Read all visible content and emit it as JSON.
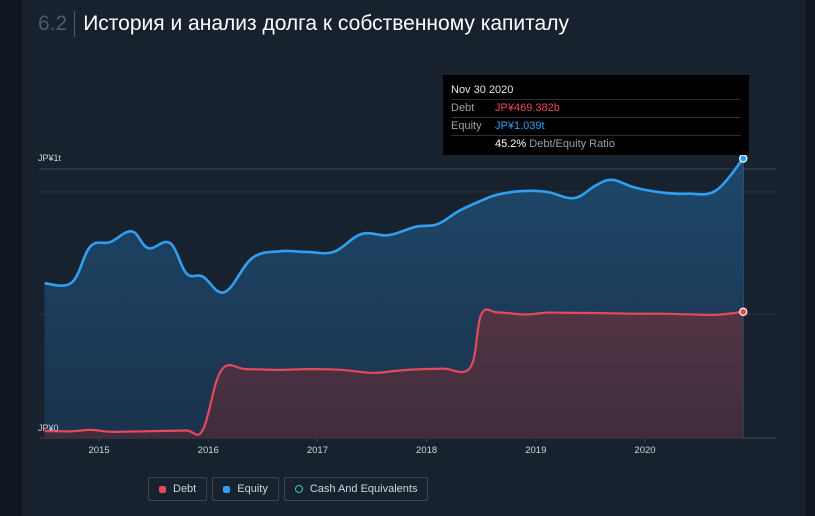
{
  "header": {
    "section_number": "6.2",
    "title": "История и анализ долга к собственному капиталу"
  },
  "tooltip": {
    "date": "Nov 30 2020",
    "debt_label": "Debt",
    "debt_value": "JP¥469.382b",
    "equity_label": "Equity",
    "equity_value": "JP¥1.039t",
    "ratio_value": "45.2%",
    "ratio_label": "Debt/Equity Ratio"
  },
  "legend": [
    {
      "label": "Debt",
      "color": "#e6485c"
    },
    {
      "label": "Equity",
      "color": "#2f9ff2"
    },
    {
      "label": "Cash And Equivalents",
      "color": "#2ec9a8"
    }
  ],
  "chart_data": {
    "type": "area",
    "y_unit": "JP¥ billions",
    "ylim": [
      0,
      1000
    ],
    "y_tick_labels": [
      "JP¥0",
      "JP¥1t"
    ],
    "x_tick_labels": [
      "2015",
      "2016",
      "2017",
      "2018",
      "2019",
      "2020"
    ],
    "xlim": [
      2014.45,
      2021.2
    ],
    "grid": true,
    "legend_position": "bottom-left",
    "series": [
      {
        "name": "Equity",
        "color": "#2f9ff2",
        "x": [
          2014.5,
          2014.75,
          2014.92,
          2015.1,
          2015.3,
          2015.45,
          2015.65,
          2015.8,
          2015.95,
          2016.15,
          2016.4,
          2016.65,
          2016.9,
          2017.15,
          2017.4,
          2017.65,
          2017.9,
          2018.1,
          2018.3,
          2018.5,
          2018.65,
          2018.88,
          2019.1,
          2019.35,
          2019.55,
          2019.7,
          2019.9,
          2020.15,
          2020.4,
          2020.65,
          2020.9
        ],
        "values": [
          575,
          578,
          712,
          728,
          768,
          706,
          725,
          612,
          600,
          542,
          668,
          694,
          692,
          692,
          758,
          754,
          785,
          795,
          845,
          882,
          905,
          918,
          915,
          892,
          939,
          960,
          932,
          913,
          908,
          920,
          1039
        ]
      },
      {
        "name": "Debt",
        "color": "#e6485c",
        "x": [
          2014.5,
          2014.75,
          2014.92,
          2015.1,
          2015.3,
          2015.55,
          2015.8,
          2015.95,
          2016.12,
          2016.35,
          2016.65,
          2016.9,
          2017.2,
          2017.5,
          2017.7,
          2017.9,
          2018.15,
          2018.4,
          2018.5,
          2018.65,
          2018.9,
          2019.1,
          2019.35,
          2019.65,
          2019.9,
          2020.15,
          2020.4,
          2020.65,
          2020.9
        ],
        "values": [
          26,
          25,
          30,
          23,
          24,
          26,
          28,
          30,
          252,
          256,
          253,
          256,
          254,
          242,
          249,
          255,
          258,
          262,
          459,
          467,
          459,
          466,
          465,
          464,
          462,
          462,
          460,
          458,
          469
        ]
      }
    ]
  }
}
